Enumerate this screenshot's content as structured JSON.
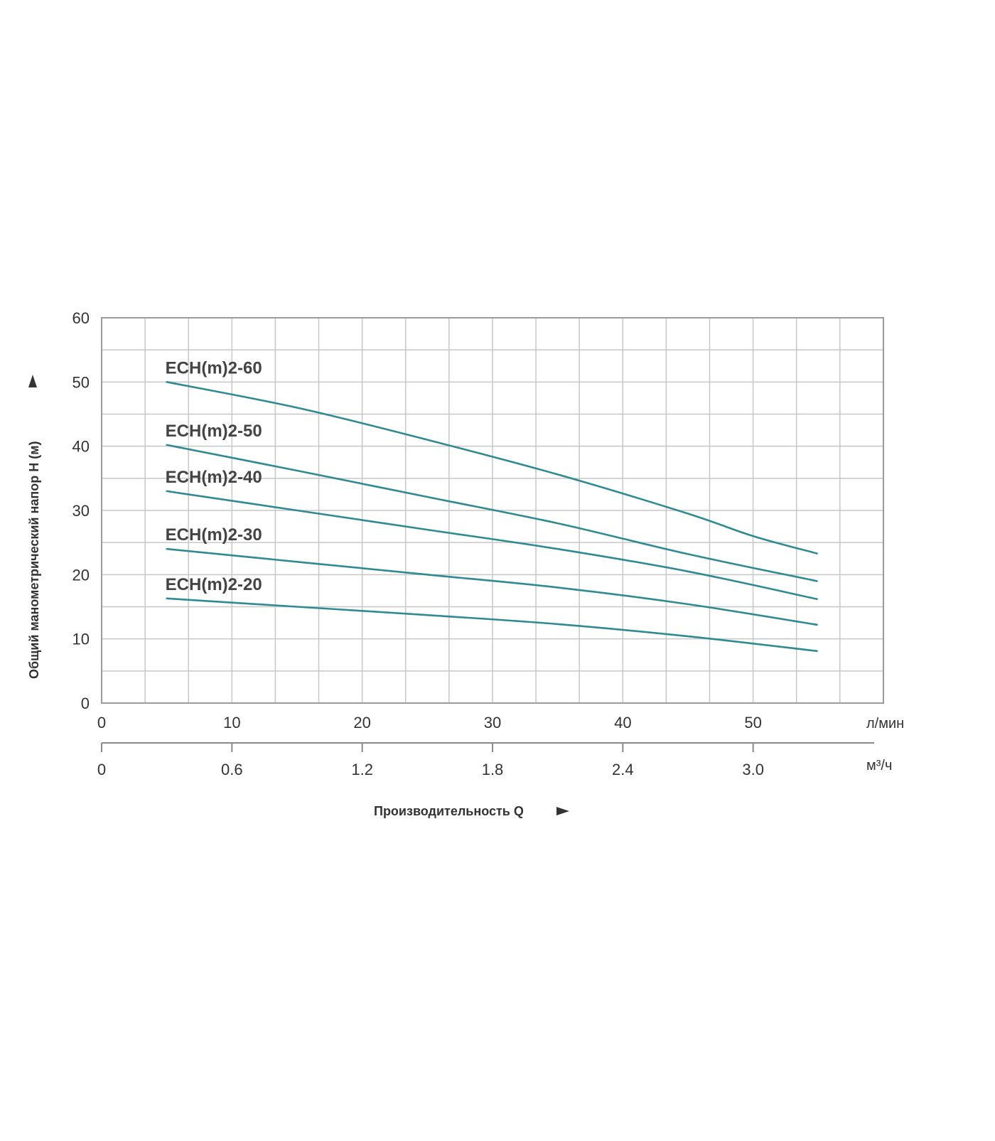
{
  "chart_data": {
    "type": "line",
    "x_unit_primary": "л/мин",
    "x_unit_secondary": "м³/ч",
    "xlabel": "Производительность Q",
    "ylabel": "Общий манометрический напор H (м)",
    "xlim": [
      0,
      60
    ],
    "ylim": [
      0,
      60
    ],
    "x_ticks_primary": [
      "0",
      "10",
      "20",
      "30",
      "40",
      "50"
    ],
    "x_ticks_primary_values": [
      0,
      10,
      20,
      30,
      40,
      50
    ],
    "x_ticks_secondary": [
      "0",
      "0.6",
      "1.2",
      "1.8",
      "2.4",
      "3.0"
    ],
    "x_ticks_secondary_values": [
      0,
      10,
      20,
      30,
      40,
      50
    ],
    "y_ticks": [
      "0",
      "10",
      "20",
      "30",
      "40",
      "50",
      "60"
    ],
    "y_ticks_values": [
      0,
      10,
      20,
      30,
      40,
      50,
      60
    ],
    "x_grid_minor_step": 3.333,
    "y_grid_minor_step": 5,
    "grid": true,
    "line_color": "#2e8b94",
    "series": [
      {
        "name": "ECH(m)2-60",
        "x": [
          5,
          15,
          25,
          35,
          45,
          50,
          54.9
        ],
        "y": [
          50,
          46,
          41,
          35.6,
          29.5,
          26,
          23.3
        ]
      },
      {
        "name": "ECH(m)2-50",
        "x": [
          5,
          15,
          25,
          35,
          45,
          54.9
        ],
        "y": [
          40.2,
          36.2,
          32.1,
          28,
          23.2,
          19
        ]
      },
      {
        "name": "ECH(m)2-40",
        "x": [
          5,
          15,
          25,
          35,
          45,
          54.9
        ],
        "y": [
          33,
          30,
          27,
          24,
          20.5,
          16.2
        ]
      },
      {
        "name": "ECH(m)2-30",
        "x": [
          5,
          15,
          25,
          35,
          45,
          54.9
        ],
        "y": [
          24,
          22,
          20,
          18,
          15.4,
          12.2
        ]
      },
      {
        "name": "ECH(m)2-20",
        "x": [
          5,
          15,
          25,
          35,
          45,
          54.9
        ],
        "y": [
          16.3,
          15,
          13.7,
          12.3,
          10.4,
          8.1
        ]
      }
    ]
  }
}
